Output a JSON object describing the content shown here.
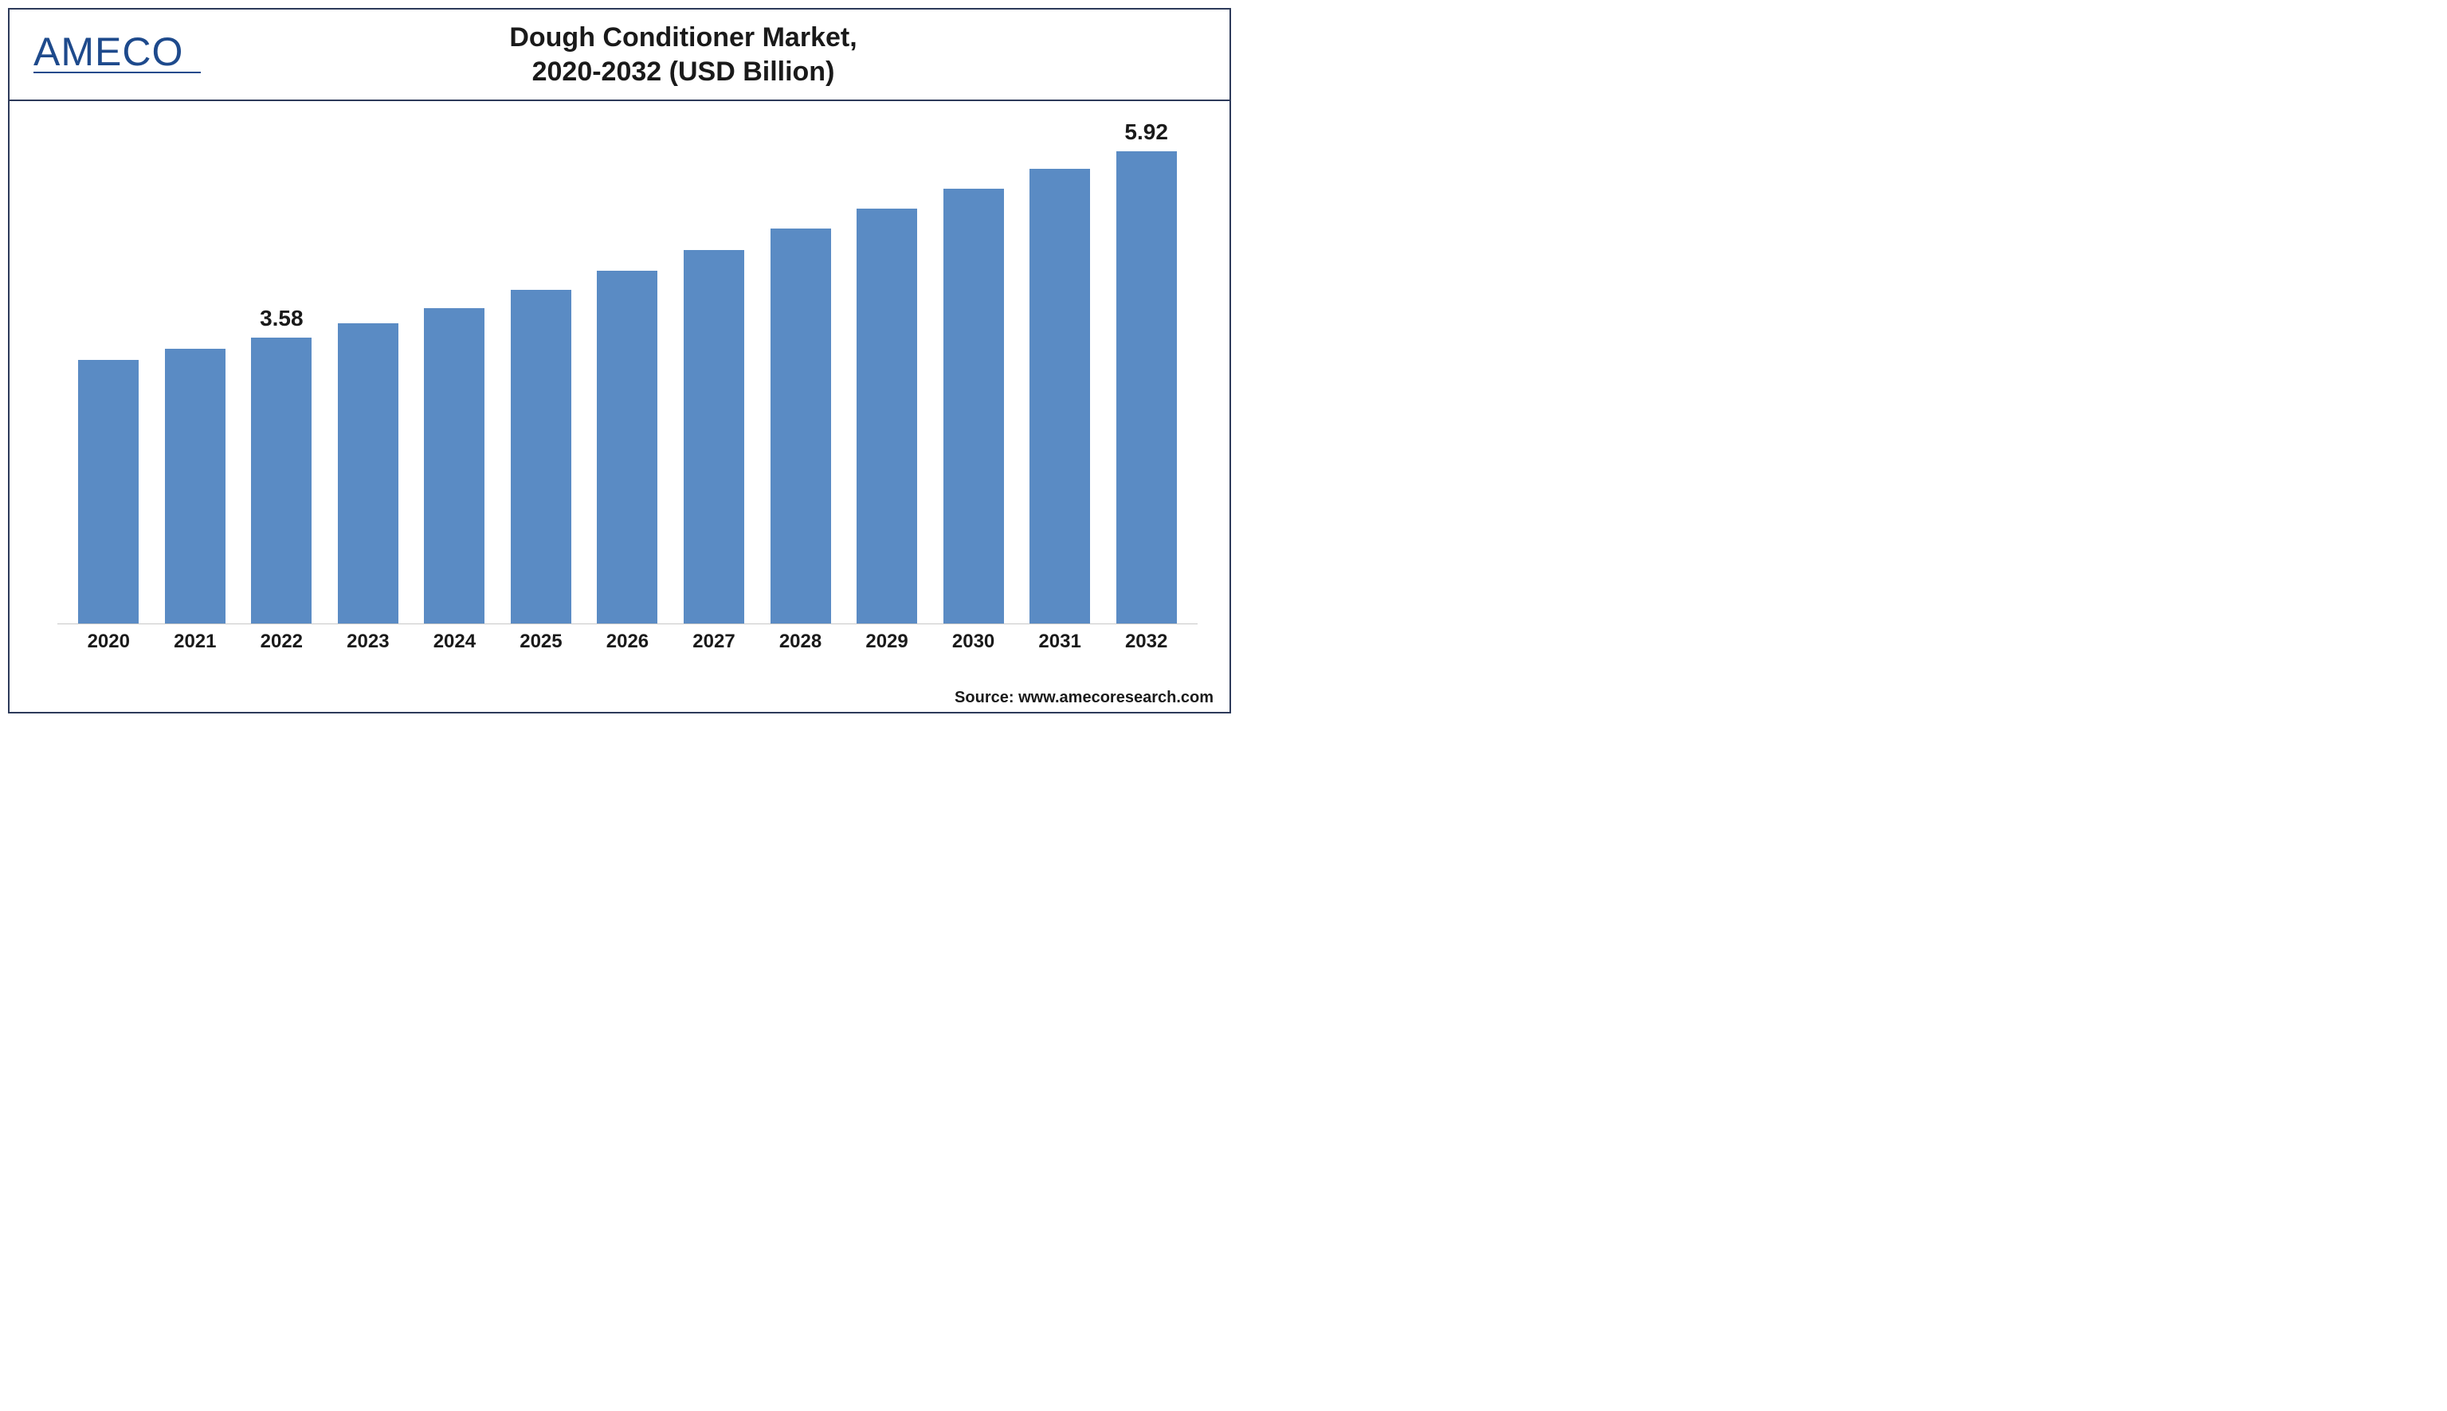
{
  "logo_text": "AMECO",
  "title_line1": "Dough Conditioner Market,",
  "title_line2": "2020-2032 (USD Billion)",
  "source_text": "Source: www.amecoresearch.com",
  "chart": {
    "type": "bar",
    "categories": [
      "2020",
      "2021",
      "2022",
      "2023",
      "2024",
      "2025",
      "2026",
      "2027",
      "2028",
      "2029",
      "2030",
      "2031",
      "2032"
    ],
    "values": [
      3.3,
      3.44,
      3.58,
      3.76,
      3.95,
      4.18,
      4.42,
      4.68,
      4.95,
      5.2,
      5.45,
      5.7,
      5.92
    ],
    "value_labels": {
      "2022": "3.58",
      "2032": "5.92"
    },
    "bar_color": "#5a8bc4",
    "background_color": "#ffffff",
    "border_color": "#2d3a5a",
    "axis_line_color": "#c8c8c8",
    "label_color": "#1a1a1a",
    "label_fontsize": 24,
    "label_fontweight": 700,
    "value_label_fontsize": 28,
    "value_label_fontweight": 700,
    "title_fontsize": 34,
    "title_fontweight": 700,
    "ylim": [
      0,
      6.2
    ],
    "bar_width": 0.7
  }
}
